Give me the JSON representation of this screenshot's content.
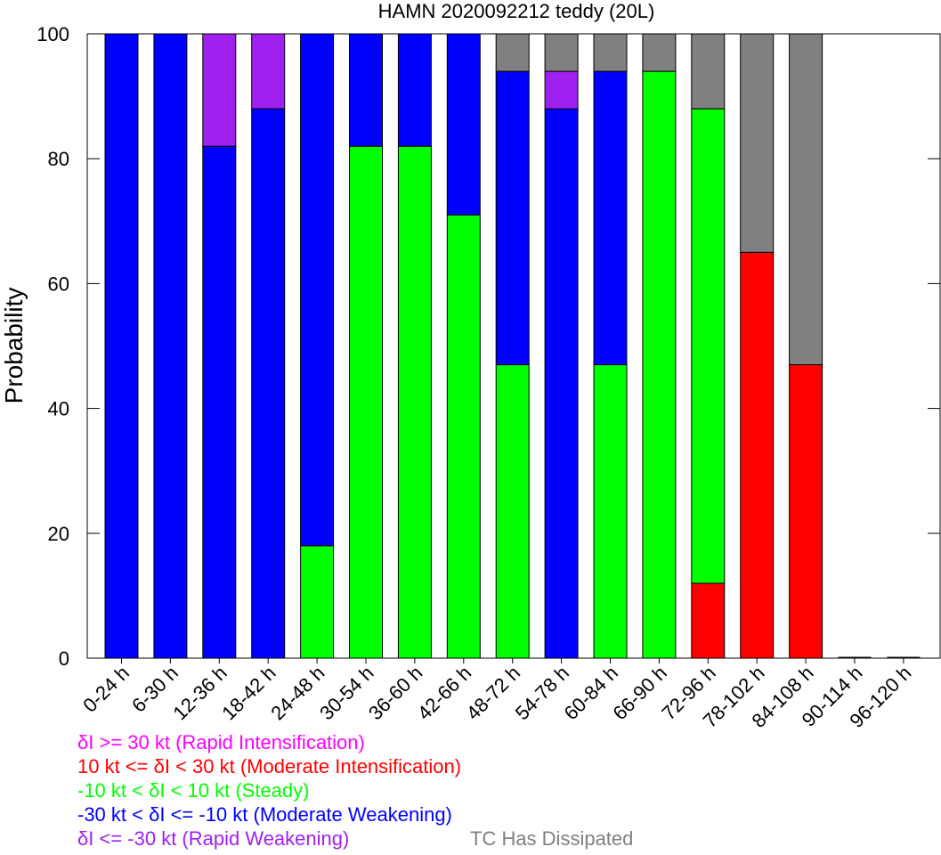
{
  "chart_data": {
    "type": "bar",
    "stacked": true,
    "title": "HAMN 2020092212 teddy (20L)",
    "ylabel": "Probability",
    "xlabel": "",
    "ylim": [
      0,
      100
    ],
    "yticks": [
      0,
      20,
      40,
      60,
      80,
      100
    ],
    "categories": [
      "0-24 h",
      "6-30 h",
      "12-36 h",
      "18-42 h",
      "24-48 h",
      "30-54 h",
      "36-60 h",
      "42-66 h",
      "48-72 h",
      "54-78 h",
      "60-84 h",
      "66-90 h",
      "72-96 h",
      "78-102 h",
      "84-108 h",
      "90-114 h",
      "96-120 h"
    ],
    "series": [
      {
        "name": "δI >= 30 kt (Rapid Intensification)",
        "color": "#ff00ff",
        "values": [
          0,
          0,
          0,
          0,
          0,
          0,
          0,
          0,
          0,
          0,
          0,
          0,
          0,
          0,
          0,
          0,
          0
        ]
      },
      {
        "name": "10 kt <= δI < 30 kt (Moderate Intensification)",
        "color": "#ff0000",
        "values": [
          0,
          0,
          0,
          0,
          0,
          0,
          0,
          0,
          0,
          0,
          0,
          0,
          12,
          65,
          47,
          0,
          0
        ]
      },
      {
        "name": "-10 kt < δI < 10 kt (Steady)",
        "color": "#00ff00",
        "values": [
          0,
          0,
          0,
          0,
          18,
          82,
          82,
          71,
          47,
          0,
          47,
          94,
          76,
          0,
          0,
          0,
          0
        ]
      },
      {
        "name": "-30 kt < δI <= -10 kt (Moderate Weakening)",
        "color": "#0000ff",
        "values": [
          100,
          100,
          82,
          88,
          82,
          18,
          18,
          29,
          47,
          88,
          47,
          0,
          0,
          0,
          0,
          0,
          0
        ]
      },
      {
        "name": "δI <= -30 kt (Rapid Weakening)",
        "color": "#a020f0",
        "values": [
          0,
          0,
          18,
          12,
          0,
          0,
          0,
          0,
          0,
          6,
          0,
          0,
          0,
          0,
          0,
          0,
          0
        ]
      },
      {
        "name": "TC Has Dissipated",
        "color": "#808080",
        "values": [
          0,
          0,
          0,
          0,
          0,
          0,
          0,
          0,
          6,
          6,
          6,
          6,
          12,
          35,
          53,
          0,
          0
        ]
      }
    ],
    "grid": false,
    "legend_placement": "bottom-left"
  },
  "legend": [
    {
      "text": "δI >= 30 kt (Rapid Intensification)",
      "color": "#ff00ff"
    },
    {
      "text": "10 kt <= δI < 30 kt (Moderate Intensification)",
      "color": "#ff0000"
    },
    {
      "text": "-10 kt < δI < 10 kt (Steady)",
      "color": "#00ff00"
    },
    {
      "text": "-30 kt < δI <= -10 kt (Moderate Weakening)",
      "color": "#0000ff"
    },
    {
      "text": "δI <= -30 kt (Rapid Weakening)",
      "color": "#a020f0"
    },
    {
      "text": "TC Has Dissipated",
      "color": "#808080"
    }
  ]
}
